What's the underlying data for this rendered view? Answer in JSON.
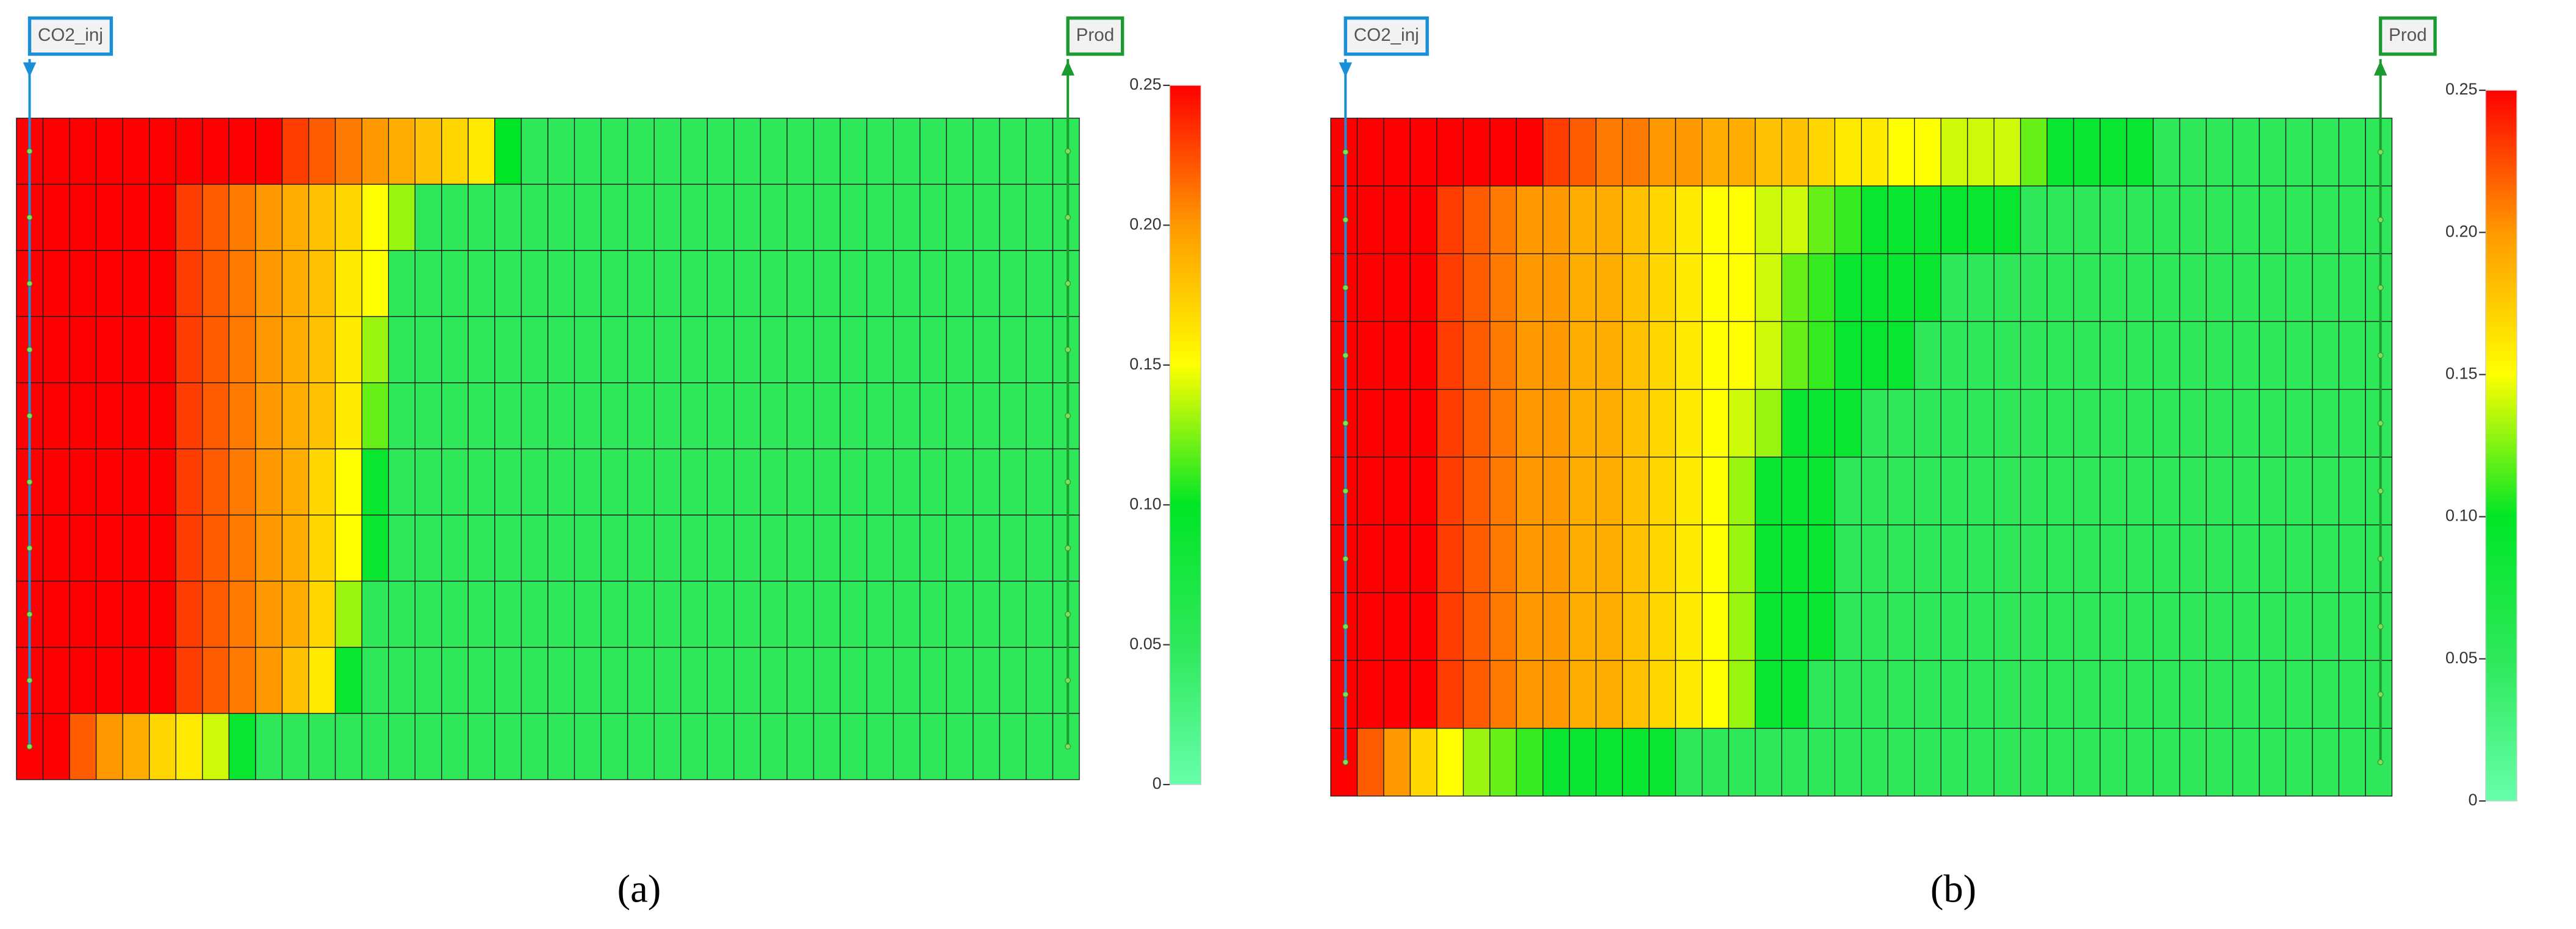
{
  "chart_data": [
    {
      "type": "heatmap",
      "caption": "(a)",
      "zlim": [
        0,
        0.25
      ],
      "zticks": [
        0,
        {
          "value": 0.05,
          "label": "0.05"
        },
        {
          "value": 0.1,
          "label": "0.10"
        },
        {
          "value": 0.15,
          "label": "0.15"
        },
        {
          "value": 0.2,
          "label": "0.20"
        },
        0.25
      ],
      "colorscale": [
        "#66ffaa",
        "#2ee85a",
        "#00e626",
        "#ffff00",
        "#ff9900",
        "#ff0000"
      ],
      "wells": [
        {
          "label": "CO2_inj",
          "color": "#1a8fd8"
        },
        {
          "label": "Prod",
          "color": "#1a9a30"
        }
      ],
      "z": [
        [
          0.25,
          0.25,
          0.25,
          0.25,
          0.25,
          0.25,
          0.25,
          0.25,
          0.25,
          0.25,
          0.23,
          0.22,
          0.21,
          0.2,
          0.19,
          0.18,
          0.17,
          0.16,
          0.1,
          0.05,
          0.05,
          0.05,
          0.05,
          0.05,
          0.05,
          0.05,
          0.05,
          0.05,
          0.05,
          0.05,
          0.05,
          0.05,
          0.05,
          0.05,
          0.05,
          0.05,
          0.05,
          0.05,
          0.05,
          0.05
        ],
        [
          0.25,
          0.25,
          0.25,
          0.25,
          0.25,
          0.25,
          0.23,
          0.22,
          0.21,
          0.2,
          0.19,
          0.18,
          0.17,
          0.15,
          0.13,
          0.05,
          0.05,
          0.05,
          0.05,
          0.05,
          0.05,
          0.05,
          0.05,
          0.05,
          0.05,
          0.05,
          0.05,
          0.05,
          0.05,
          0.05,
          0.05,
          0.05,
          0.05,
          0.05,
          0.05,
          0.05,
          0.05,
          0.05,
          0.05,
          0.05
        ],
        [
          0.25,
          0.25,
          0.25,
          0.25,
          0.25,
          0.25,
          0.23,
          0.22,
          0.21,
          0.2,
          0.19,
          0.18,
          0.16,
          0.15,
          0.05,
          0.05,
          0.05,
          0.05,
          0.05,
          0.05,
          0.05,
          0.05,
          0.05,
          0.05,
          0.05,
          0.05,
          0.05,
          0.05,
          0.05,
          0.05,
          0.05,
          0.05,
          0.05,
          0.05,
          0.05,
          0.05,
          0.05,
          0.05,
          0.05,
          0.05
        ],
        [
          0.25,
          0.25,
          0.25,
          0.25,
          0.25,
          0.25,
          0.23,
          0.22,
          0.21,
          0.2,
          0.19,
          0.18,
          0.16,
          0.13,
          0.05,
          0.05,
          0.05,
          0.05,
          0.05,
          0.05,
          0.05,
          0.05,
          0.05,
          0.05,
          0.05,
          0.05,
          0.05,
          0.05,
          0.05,
          0.05,
          0.05,
          0.05,
          0.05,
          0.05,
          0.05,
          0.05,
          0.05,
          0.05,
          0.05,
          0.05
        ],
        [
          0.25,
          0.25,
          0.25,
          0.25,
          0.25,
          0.25,
          0.23,
          0.22,
          0.21,
          0.2,
          0.19,
          0.18,
          0.16,
          0.12,
          0.05,
          0.05,
          0.05,
          0.05,
          0.05,
          0.05,
          0.05,
          0.05,
          0.05,
          0.05,
          0.05,
          0.05,
          0.05,
          0.05,
          0.05,
          0.05,
          0.05,
          0.05,
          0.05,
          0.05,
          0.05,
          0.05,
          0.05,
          0.05,
          0.05,
          0.05
        ],
        [
          0.25,
          0.25,
          0.25,
          0.25,
          0.25,
          0.25,
          0.23,
          0.22,
          0.21,
          0.2,
          0.19,
          0.17,
          0.15,
          0.09,
          0.05,
          0.05,
          0.05,
          0.05,
          0.05,
          0.05,
          0.05,
          0.05,
          0.05,
          0.05,
          0.05,
          0.05,
          0.05,
          0.05,
          0.05,
          0.05,
          0.05,
          0.05,
          0.05,
          0.05,
          0.05,
          0.05,
          0.05,
          0.05,
          0.05,
          0.05
        ],
        [
          0.25,
          0.25,
          0.25,
          0.25,
          0.25,
          0.25,
          0.23,
          0.22,
          0.21,
          0.2,
          0.19,
          0.17,
          0.15,
          0.09,
          0.05,
          0.05,
          0.05,
          0.05,
          0.05,
          0.05,
          0.05,
          0.05,
          0.05,
          0.05,
          0.05,
          0.05,
          0.05,
          0.05,
          0.05,
          0.05,
          0.05,
          0.05,
          0.05,
          0.05,
          0.05,
          0.05,
          0.05,
          0.05,
          0.05,
          0.05
        ],
        [
          0.25,
          0.25,
          0.25,
          0.25,
          0.25,
          0.25,
          0.23,
          0.22,
          0.21,
          0.2,
          0.19,
          0.17,
          0.13,
          0.05,
          0.05,
          0.05,
          0.05,
          0.05,
          0.05,
          0.05,
          0.05,
          0.05,
          0.05,
          0.05,
          0.05,
          0.05,
          0.05,
          0.05,
          0.05,
          0.05,
          0.05,
          0.05,
          0.05,
          0.05,
          0.05,
          0.05,
          0.05,
          0.05,
          0.05,
          0.05
        ],
        [
          0.25,
          0.25,
          0.25,
          0.25,
          0.25,
          0.25,
          0.23,
          0.22,
          0.21,
          0.2,
          0.18,
          0.16,
          0.09,
          0.05,
          0.05,
          0.05,
          0.05,
          0.05,
          0.05,
          0.05,
          0.05,
          0.05,
          0.05,
          0.05,
          0.05,
          0.05,
          0.05,
          0.05,
          0.05,
          0.05,
          0.05,
          0.05,
          0.05,
          0.05,
          0.05,
          0.05,
          0.05,
          0.05,
          0.05,
          0.05
        ],
        [
          0.25,
          0.25,
          0.22,
          0.2,
          0.19,
          0.17,
          0.16,
          0.14,
          0.09,
          0.05,
          0.05,
          0.05,
          0.05,
          0.05,
          0.05,
          0.05,
          0.05,
          0.05,
          0.05,
          0.05,
          0.05,
          0.05,
          0.05,
          0.05,
          0.05,
          0.05,
          0.05,
          0.05,
          0.05,
          0.05,
          0.05,
          0.05,
          0.05,
          0.05,
          0.05,
          0.05,
          0.05,
          0.05,
          0.05,
          0.05
        ]
      ]
    },
    {
      "type": "heatmap",
      "caption": "(b)",
      "zlim": [
        0,
        0.25
      ],
      "zticks": [
        0,
        {
          "value": 0.05,
          "label": "0.05"
        },
        {
          "value": 0.1,
          "label": "0.10"
        },
        {
          "value": 0.15,
          "label": "0.15"
        },
        {
          "value": 0.2,
          "label": "0.20"
        },
        0.25
      ],
      "colorscale": [
        "#66ffaa",
        "#2ee85a",
        "#00e626",
        "#ffff00",
        "#ff9900",
        "#ff0000"
      ],
      "wells": [
        {
          "label": "CO2_inj",
          "color": "#1a8fd8"
        },
        {
          "label": "Prod",
          "color": "#1a9a30"
        }
      ],
      "z": [
        [
          0.25,
          0.25,
          0.25,
          0.25,
          0.25,
          0.25,
          0.25,
          0.25,
          0.23,
          0.22,
          0.21,
          0.21,
          0.2,
          0.2,
          0.19,
          0.19,
          0.18,
          0.18,
          0.17,
          0.16,
          0.16,
          0.15,
          0.15,
          0.14,
          0.14,
          0.14,
          0.12,
          0.09,
          0.09,
          0.09,
          0.09,
          0.05,
          0.05,
          0.05,
          0.05,
          0.05,
          0.05,
          0.05,
          0.05,
          0.05
        ],
        [
          0.25,
          0.25,
          0.25,
          0.25,
          0.23,
          0.22,
          0.21,
          0.2,
          0.2,
          0.19,
          0.19,
          0.18,
          0.17,
          0.16,
          0.15,
          0.15,
          0.14,
          0.14,
          0.12,
          0.11,
          0.09,
          0.09,
          0.09,
          0.09,
          0.09,
          0.09,
          0.05,
          0.05,
          0.05,
          0.05,
          0.05,
          0.05,
          0.05,
          0.05,
          0.05,
          0.05,
          0.05,
          0.05,
          0.05,
          0.05
        ],
        [
          0.25,
          0.25,
          0.25,
          0.25,
          0.23,
          0.22,
          0.21,
          0.2,
          0.2,
          0.19,
          0.19,
          0.18,
          0.17,
          0.16,
          0.15,
          0.15,
          0.14,
          0.12,
          0.11,
          0.09,
          0.09,
          0.09,
          0.09,
          0.05,
          0.05,
          0.05,
          0.05,
          0.05,
          0.05,
          0.05,
          0.05,
          0.05,
          0.05,
          0.05,
          0.05,
          0.05,
          0.05,
          0.05,
          0.05,
          0.05
        ],
        [
          0.25,
          0.25,
          0.25,
          0.25,
          0.23,
          0.22,
          0.21,
          0.2,
          0.2,
          0.19,
          0.19,
          0.18,
          0.17,
          0.16,
          0.15,
          0.15,
          0.14,
          0.12,
          0.11,
          0.09,
          0.09,
          0.09,
          0.05,
          0.05,
          0.05,
          0.05,
          0.05,
          0.05,
          0.05,
          0.05,
          0.05,
          0.05,
          0.05,
          0.05,
          0.05,
          0.05,
          0.05,
          0.05,
          0.05,
          0.05
        ],
        [
          0.25,
          0.25,
          0.25,
          0.25,
          0.23,
          0.22,
          0.21,
          0.2,
          0.2,
          0.19,
          0.19,
          0.18,
          0.17,
          0.16,
          0.15,
          0.14,
          0.13,
          0.09,
          0.09,
          0.09,
          0.05,
          0.05,
          0.05,
          0.05,
          0.05,
          0.05,
          0.05,
          0.05,
          0.05,
          0.05,
          0.05,
          0.05,
          0.05,
          0.05,
          0.05,
          0.05,
          0.05,
          0.05,
          0.05,
          0.05
        ],
        [
          0.25,
          0.25,
          0.25,
          0.25,
          0.23,
          0.22,
          0.21,
          0.2,
          0.2,
          0.19,
          0.19,
          0.18,
          0.17,
          0.16,
          0.15,
          0.13,
          0.09,
          0.09,
          0.09,
          0.05,
          0.05,
          0.05,
          0.05,
          0.05,
          0.05,
          0.05,
          0.05,
          0.05,
          0.05,
          0.05,
          0.05,
          0.05,
          0.05,
          0.05,
          0.05,
          0.05,
          0.05,
          0.05,
          0.05,
          0.05
        ],
        [
          0.25,
          0.25,
          0.25,
          0.25,
          0.23,
          0.22,
          0.21,
          0.2,
          0.2,
          0.19,
          0.19,
          0.18,
          0.17,
          0.16,
          0.15,
          0.13,
          0.09,
          0.09,
          0.09,
          0.05,
          0.05,
          0.05,
          0.05,
          0.05,
          0.05,
          0.05,
          0.05,
          0.05,
          0.05,
          0.05,
          0.05,
          0.05,
          0.05,
          0.05,
          0.05,
          0.05,
          0.05,
          0.05,
          0.05,
          0.05
        ],
        [
          0.25,
          0.25,
          0.25,
          0.25,
          0.23,
          0.22,
          0.21,
          0.2,
          0.2,
          0.19,
          0.19,
          0.18,
          0.17,
          0.16,
          0.15,
          0.13,
          0.09,
          0.09,
          0.09,
          0.05,
          0.05,
          0.05,
          0.05,
          0.05,
          0.05,
          0.05,
          0.05,
          0.05,
          0.05,
          0.05,
          0.05,
          0.05,
          0.05,
          0.05,
          0.05,
          0.05,
          0.05,
          0.05,
          0.05,
          0.05
        ],
        [
          0.25,
          0.25,
          0.25,
          0.25,
          0.23,
          0.22,
          0.21,
          0.2,
          0.2,
          0.19,
          0.19,
          0.18,
          0.17,
          0.16,
          0.15,
          0.13,
          0.09,
          0.09,
          0.05,
          0.05,
          0.05,
          0.05,
          0.05,
          0.05,
          0.05,
          0.05,
          0.05,
          0.05,
          0.05,
          0.05,
          0.05,
          0.05,
          0.05,
          0.05,
          0.05,
          0.05,
          0.05,
          0.05,
          0.05,
          0.05
        ],
        [
          0.25,
          0.22,
          0.2,
          0.17,
          0.15,
          0.13,
          0.12,
          0.11,
          0.09,
          0.09,
          0.09,
          0.09,
          0.09,
          0.05,
          0.05,
          0.05,
          0.05,
          0.05,
          0.05,
          0.05,
          0.05,
          0.05,
          0.05,
          0.05,
          0.05,
          0.05,
          0.05,
          0.05,
          0.05,
          0.05,
          0.05,
          0.05,
          0.05,
          0.05,
          0.05,
          0.05,
          0.05,
          0.05,
          0.05,
          0.05
        ]
      ]
    }
  ]
}
